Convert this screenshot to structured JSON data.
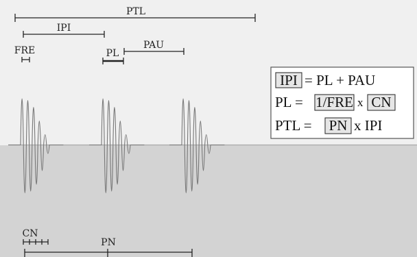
{
  "colors": {
    "top_background": "#f0f0f0",
    "bottom_background": "#d3d3d3",
    "baseline": "#a8a8a8",
    "wave": "#777777",
    "measure_line": "#222222",
    "formula_box_border": "#555555",
    "boxed_term_fill": "#e6e6e6"
  },
  "labels": {
    "ptl": "PTL",
    "ipi": "IPI",
    "fre": "FRE",
    "pl": "PL",
    "pau": "PAU",
    "cn": "CN",
    "pn": "PN"
  },
  "equations": {
    "eq1": {
      "boxed": "IPI",
      "rest": "= PL + PAU"
    },
    "eq2": {
      "lhs": "PL =",
      "boxed_a": "1/FRE",
      "times": "x",
      "boxed_b": "CN"
    },
    "eq3": {
      "lhs": "PTL =",
      "boxed": "PN",
      "rest": "x IPI"
    }
  }
}
